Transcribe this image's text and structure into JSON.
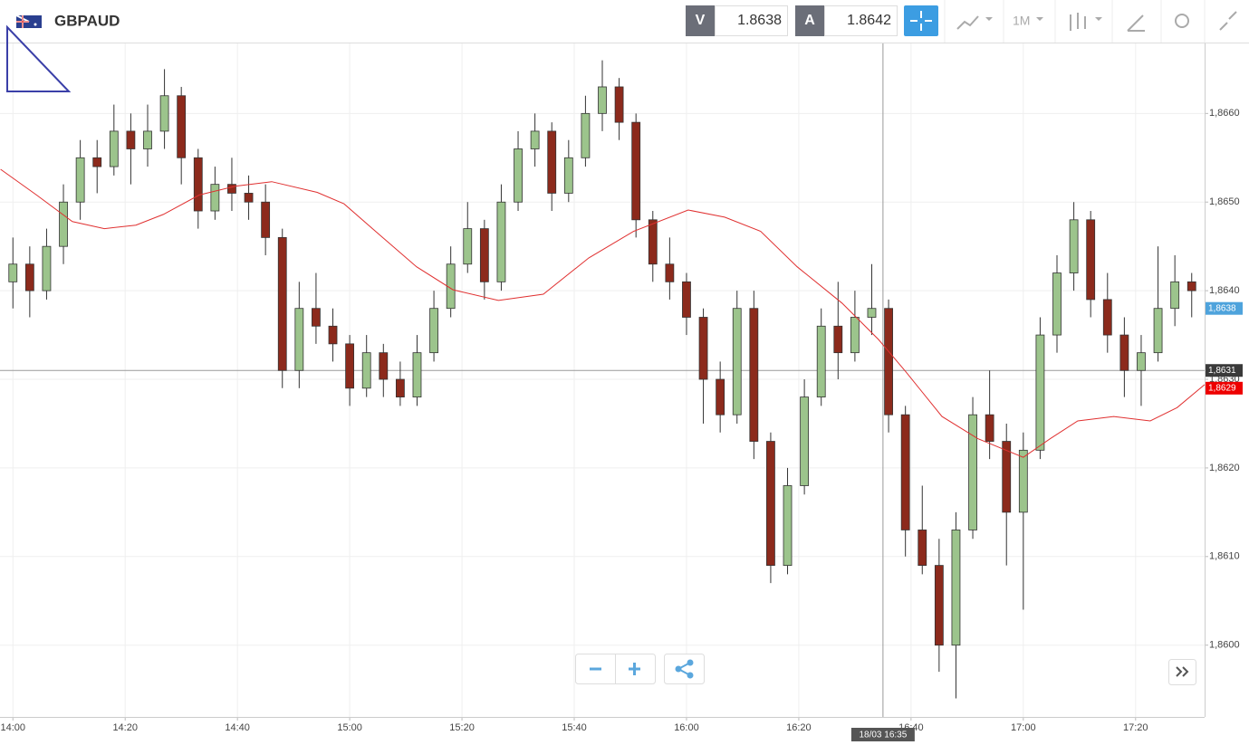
{
  "header": {
    "symbol": "GBPAUD",
    "bid_label": "V",
    "bid": "1.8638",
    "ask_label": "A",
    "ask": "1.8642",
    "timeframe": "1M"
  },
  "chart_data": {
    "type": "candlestick",
    "x": [
      0,
      3,
      6,
      9,
      12,
      15,
      18,
      21,
      24,
      27,
      30,
      33,
      36,
      39,
      42,
      45,
      48,
      51,
      54,
      57,
      60,
      63,
      66,
      69,
      72,
      75,
      78,
      81,
      84,
      87,
      90,
      93,
      96,
      99,
      102,
      105,
      108,
      111,
      114,
      117,
      120,
      123,
      126,
      129,
      132,
      135,
      138,
      141,
      144,
      147,
      150,
      153,
      156,
      159,
      162,
      165,
      168,
      171,
      174,
      177,
      180,
      183,
      186,
      189,
      192,
      195,
      198,
      201,
      204,
      207,
      210
    ],
    "ohlc": [
      [
        1.8641,
        1.8646,
        1.8638,
        1.8643
      ],
      [
        1.8643,
        1.8645,
        1.8637,
        1.864
      ],
      [
        1.864,
        1.8647,
        1.8639,
        1.8645
      ],
      [
        1.8645,
        1.8652,
        1.8643,
        1.865
      ],
      [
        1.865,
        1.8657,
        1.8648,
        1.8655
      ],
      [
        1.8655,
        1.8657,
        1.8651,
        1.8654
      ],
      [
        1.8654,
        1.8661,
        1.8653,
        1.8658
      ],
      [
        1.8658,
        1.866,
        1.8652,
        1.8656
      ],
      [
        1.8656,
        1.8661,
        1.8654,
        1.8658
      ],
      [
        1.8658,
        1.8665,
        1.8656,
        1.8662
      ],
      [
        1.8662,
        1.8663,
        1.8652,
        1.8655
      ],
      [
        1.8655,
        1.8656,
        1.8647,
        1.8649
      ],
      [
        1.8649,
        1.8654,
        1.8648,
        1.8652
      ],
      [
        1.8652,
        1.8655,
        1.8649,
        1.8651
      ],
      [
        1.8651,
        1.8653,
        1.8648,
        1.865
      ],
      [
        1.865,
        1.8652,
        1.8644,
        1.8646
      ],
      [
        1.8646,
        1.8647,
        1.8629,
        1.8631
      ],
      [
        1.8631,
        1.8641,
        1.8629,
        1.8638
      ],
      [
        1.8638,
        1.8642,
        1.8634,
        1.8636
      ],
      [
        1.8636,
        1.8638,
        1.8632,
        1.8634
      ],
      [
        1.8634,
        1.8635,
        1.8627,
        1.8629
      ],
      [
        1.8629,
        1.8635,
        1.8628,
        1.8633
      ],
      [
        1.8633,
        1.8634,
        1.8628,
        1.863
      ],
      [
        1.863,
        1.8632,
        1.8627,
        1.8628
      ],
      [
        1.8628,
        1.8635,
        1.8627,
        1.8633
      ],
      [
        1.8633,
        1.864,
        1.8632,
        1.8638
      ],
      [
        1.8638,
        1.8645,
        1.8637,
        1.8643
      ],
      [
        1.8643,
        1.865,
        1.8642,
        1.8647
      ],
      [
        1.8647,
        1.8648,
        1.8639,
        1.8641
      ],
      [
        1.8641,
        1.8652,
        1.864,
        1.865
      ],
      [
        1.865,
        1.8658,
        1.8649,
        1.8656
      ],
      [
        1.8656,
        1.866,
        1.8654,
        1.8658
      ],
      [
        1.8658,
        1.8659,
        1.8649,
        1.8651
      ],
      [
        1.8651,
        1.8657,
        1.865,
        1.8655
      ],
      [
        1.8655,
        1.8662,
        1.8654,
        1.866
      ],
      [
        1.866,
        1.8666,
        1.8658,
        1.8663
      ],
      [
        1.8663,
        1.8664,
        1.8657,
        1.8659
      ],
      [
        1.8659,
        1.866,
        1.8646,
        1.8648
      ],
      [
        1.8648,
        1.8649,
        1.8641,
        1.8643
      ],
      [
        1.8643,
        1.8646,
        1.8639,
        1.8641
      ],
      [
        1.8641,
        1.8642,
        1.8635,
        1.8637
      ],
      [
        1.8637,
        1.8638,
        1.8625,
        1.863
      ],
      [
        1.863,
        1.8632,
        1.8624,
        1.8626
      ],
      [
        1.8626,
        1.864,
        1.8625,
        1.8638
      ],
      [
        1.8638,
        1.864,
        1.8621,
        1.8623
      ],
      [
        1.8623,
        1.8624,
        1.8607,
        1.8609
      ],
      [
        1.8609,
        1.862,
        1.8608,
        1.8618
      ],
      [
        1.8618,
        1.863,
        1.8617,
        1.8628
      ],
      [
        1.8628,
        1.8638,
        1.8627,
        1.8636
      ],
      [
        1.8636,
        1.8641,
        1.863,
        1.8633
      ],
      [
        1.8633,
        1.864,
        1.8632,
        1.8637
      ],
      [
        1.8637,
        1.8643,
        1.8635,
        1.8638
      ],
      [
        1.8638,
        1.8639,
        1.8624,
        1.8626
      ],
      [
        1.8626,
        1.8627,
        1.861,
        1.8613
      ],
      [
        1.8613,
        1.8618,
        1.8608,
        1.8609
      ],
      [
        1.8609,
        1.8612,
        1.8597,
        1.86
      ],
      [
        1.86,
        1.8615,
        1.8594,
        1.8613
      ],
      [
        1.8613,
        1.8628,
        1.8612,
        1.8626
      ],
      [
        1.8626,
        1.8631,
        1.8621,
        1.8623
      ],
      [
        1.8623,
        1.8625,
        1.8609,
        1.8615
      ],
      [
        1.8615,
        1.8624,
        1.8604,
        1.8622
      ],
      [
        1.8622,
        1.8637,
        1.8621,
        1.8635
      ],
      [
        1.8635,
        1.8644,
        1.8633,
        1.8642
      ],
      [
        1.8642,
        1.865,
        1.864,
        1.8648
      ],
      [
        1.8648,
        1.8649,
        1.8637,
        1.8639
      ],
      [
        1.8639,
        1.8642,
        1.8633,
        1.8635
      ],
      [
        1.8635,
        1.8637,
        1.8628,
        1.8631
      ],
      [
        1.8631,
        1.8635,
        1.8627,
        1.8633
      ],
      [
        1.8633,
        1.8645,
        1.8632,
        1.8638
      ],
      [
        1.8638,
        1.8644,
        1.8636,
        1.8641
      ],
      [
        1.8641,
        1.8642,
        1.8637,
        1.864
      ]
    ],
    "up_color": "#9cc48c",
    "down_color": "#8c2a1c",
    "ma": {
      "color": "#e03030",
      "x": [
        -2.2,
        4.2,
        10.6,
        16.3,
        21.9,
        26.8,
        33.2,
        39.7,
        46.1,
        54.2,
        59,
        65.5,
        71.9,
        78.4,
        86.5,
        94.5,
        102.6,
        110.6,
        120.3,
        126.8,
        133.2,
        139.7,
        147.7,
        154.2,
        159,
        165.5,
        171.9,
        180,
        184.8,
        189.7,
        196.1,
        202.6,
        207.4,
        212.3
      ],
      "values": [
        1.86537,
        1.86508,
        1.86478,
        1.8647,
        1.86474,
        1.86486,
        1.86508,
        1.86518,
        1.86523,
        1.86511,
        1.86498,
        1.86462,
        1.86427,
        1.86401,
        1.86389,
        1.86396,
        1.86437,
        1.86467,
        1.86491,
        1.86483,
        1.86467,
        1.86427,
        1.86386,
        1.86345,
        1.86309,
        1.86258,
        1.86233,
        1.86212,
        1.86233,
        1.86253,
        1.86258,
        1.86253,
        1.86268,
        1.86294
      ]
    },
    "xlim": [
      -2.3,
      212.3
    ],
    "ylim": [
      1.85919,
      1.86679
    ],
    "xticks": [
      {
        "value": 0,
        "label": "14:00"
      },
      {
        "value": 20,
        "label": "14:20"
      },
      {
        "value": 40,
        "label": "14:40"
      },
      {
        "value": 60,
        "label": "15:00"
      },
      {
        "value": 80,
        "label": "15:20"
      },
      {
        "value": 100,
        "label": "15:40"
      },
      {
        "value": 120,
        "label": "16:00"
      },
      {
        "value": 140,
        "label": "16:20"
      },
      {
        "value": 160,
        "label": "16:40"
      },
      {
        "value": 180,
        "label": "17:00"
      },
      {
        "value": 200,
        "label": "17:20"
      }
    ],
    "yticks": [
      {
        "value": 1.86,
        "label": "1,8600"
      },
      {
        "value": 1.861,
        "label": "1,8610"
      },
      {
        "value": 1.862,
        "label": "1,8620"
      },
      {
        "value": 1.863,
        "label": "1,8630"
      },
      {
        "value": 1.864,
        "label": "1,8640"
      },
      {
        "value": 1.865,
        "label": "1,8650"
      },
      {
        "value": 1.866,
        "label": "1,8660"
      }
    ],
    "grid": true,
    "price_labels": [
      {
        "value": 1.8638,
        "label": "1,8638",
        "color": "#4ea3dc"
      },
      {
        "value": 1.8629,
        "label": "1,8629",
        "color": "#ee0000"
      }
    ],
    "crosshair": {
      "x": {
        "value": 155,
        "label": "18/03 16:35"
      },
      "y": {
        "value": 1.8631,
        "label": "1,8631"
      }
    }
  }
}
